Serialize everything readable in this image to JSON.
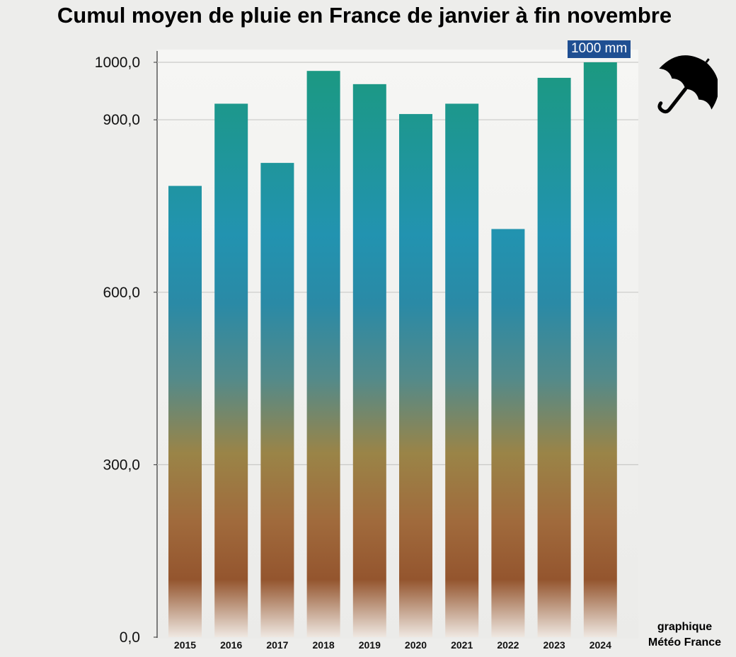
{
  "title": "Cumul moyen de pluie en France de janvier à fin novembre",
  "highlight_label": "1000 mm",
  "credit": {
    "line1": "graphique",
    "line2": "Météo France"
  },
  "icon": "umbrella-icon",
  "colors": {
    "top": "#1b9980",
    "mid": "#2293b0",
    "middle_low": "#9a8447",
    "bottom": "#98572f",
    "badge": "#1f4f92"
  },
  "chart_data": {
    "type": "bar",
    "title": "Cumul moyen de pluie en France de janvier à fin novembre",
    "xlabel": "",
    "ylabel": "",
    "categories": [
      "2015",
      "2016",
      "2017",
      "2018",
      "2019",
      "2020",
      "2021",
      "2022",
      "2023",
      "2024"
    ],
    "values": [
      785,
      928,
      825,
      985,
      962,
      910,
      928,
      710,
      973,
      1000
    ],
    "ylim": [
      0,
      1000
    ],
    "y_ticks": [
      0,
      300,
      600,
      900,
      1000
    ],
    "y_tick_labels": [
      "0,0",
      "300,0",
      "600,0",
      "900,0",
      "1000,0"
    ],
    "grid": true,
    "annotations": [
      {
        "category": "2024",
        "text": "1000 mm"
      }
    ]
  }
}
